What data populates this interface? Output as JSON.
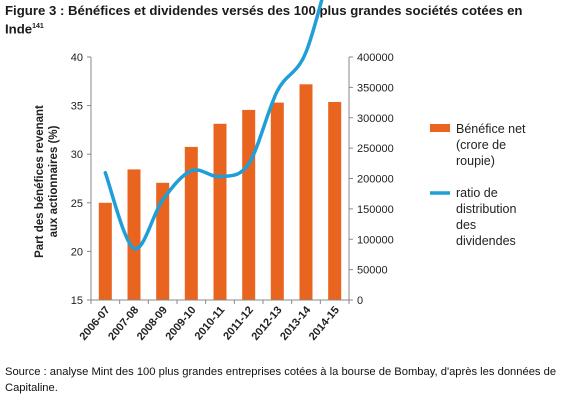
{
  "figure": {
    "title": "Figure 3 : Bénéfices et dividendes versés des 100 plus grandes sociétés cotées en Inde",
    "footnote_ref": "141",
    "source": "Source : analyse Mint des 100 plus grandes entreprises cotées à la bourse de Bombay, d'après les données de Capitaline."
  },
  "chart_data": {
    "type": "bar",
    "title": "",
    "xlabel": "",
    "categories": [
      "2006-07",
      "2007-08",
      "2008-09",
      "2009-10",
      "2010-11",
      "2011-12",
      "2012-13",
      "2013-14",
      "2014-15"
    ],
    "series": [
      {
        "name": "Bénéfice net (crore de roupie)",
        "type": "bar",
        "axis": "right",
        "color": "#e8641f",
        "values": [
          160000,
          215000,
          193000,
          252000,
          290000,
          313000,
          325000,
          355000,
          326000
        ]
      },
      {
        "name": "ratio de distribution des dividendes",
        "type": "line",
        "axis": "left",
        "color": "#1f9ed8",
        "values": [
          28.1,
          20.3,
          25.3,
          28.3,
          27.7,
          29.0,
          36.5,
          40.5,
          51.0
        ]
      }
    ],
    "left_axis": {
      "label": "Part des bénéfices revenant aux actionnaires (%)",
      "min": 15,
      "max": 40,
      "ticks": [
        15,
        20,
        25,
        30,
        35,
        40
      ],
      "tick_labels": [
        "15",
        "20",
        "25",
        "30",
        "35",
        "40"
      ]
    },
    "right_axis": {
      "label": "",
      "min": 0,
      "max": 400000,
      "ticks": [
        0,
        50000,
        100000,
        150000,
        200000,
        250000,
        300000,
        350000,
        400000
      ],
      "tick_labels": [
        "0",
        "50000",
        "100000",
        "150000",
        "200000",
        "250000",
        "300000",
        "350000",
        "400000"
      ]
    },
    "legend": {
      "placement": "right",
      "entries": [
        {
          "series": 0,
          "lines": [
            "Bénéfice net",
            "(crore de",
            "roupie)"
          ]
        },
        {
          "series": 1,
          "lines": [
            "ratio de",
            "distribution",
            "des",
            "dividendes"
          ]
        }
      ]
    },
    "grid": false
  }
}
